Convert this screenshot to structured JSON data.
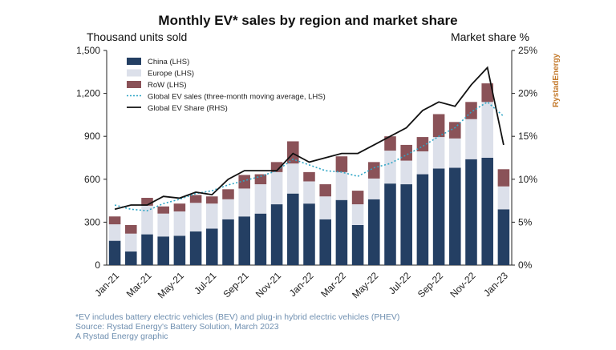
{
  "chart_data": {
    "type": "bar",
    "title": "Monthly EV* sales by region and market share",
    "left_axis_label": "Thousand units sold",
    "right_axis_label": "Market share %",
    "brand": "RystadEnergy",
    "ylim_left": [
      0,
      1500
    ],
    "yticks_left": [
      "0",
      "300",
      "600",
      "900",
      "1,200",
      "1,500"
    ],
    "ylim_right": [
      0,
      25
    ],
    "yticks_right": [
      "0%",
      "5%",
      "10%",
      "15%",
      "20%",
      "25%"
    ],
    "categories": [
      "Jan-21",
      "Feb-21",
      "Mar-21",
      "Apr-21",
      "May-21",
      "Jun-21",
      "Jul-21",
      "Aug-21",
      "Sep-21",
      "Oct-21",
      "Nov-21",
      "Dec-21",
      "Jan-22",
      "Feb-22",
      "Mar-22",
      "Apr-22",
      "May-22",
      "Jun-22",
      "Jul-22",
      "Aug-22",
      "Sep-22",
      "Oct-22",
      "Nov-22",
      "Dec-22",
      "Jan-23"
    ],
    "x_tick_labels": [
      "Jan-21",
      "",
      "Mar-21",
      "",
      "May-21",
      "",
      "Jul-21",
      "",
      "Sep-21",
      "",
      "Nov-21",
      "",
      "Jan-22",
      "",
      "Mar-22",
      "",
      "May-22",
      "",
      "Jul-22",
      "",
      "Sep-22",
      "",
      "Nov-22",
      "",
      "Jan-23"
    ],
    "series": [
      {
        "name": "China (LHS)",
        "kind": "bar",
        "color": "#243f63",
        "values": [
          170,
          95,
          215,
          200,
          205,
          235,
          255,
          320,
          340,
          360,
          425,
          500,
          430,
          320,
          455,
          280,
          460,
          570,
          565,
          635,
          675,
          680,
          740,
          750,
          390
        ]
      },
      {
        "name": "Europe (LHS)",
        "kind": "bar",
        "color": "#dce0ea",
        "values": [
          115,
          125,
          200,
          160,
          170,
          200,
          175,
          140,
          195,
          205,
          225,
          210,
          155,
          160,
          195,
          145,
          145,
          230,
          165,
          160,
          220,
          205,
          280,
          390,
          160
        ]
      },
      {
        "name": "RoW (LHS)",
        "kind": "bar",
        "color": "#8a5258",
        "values": [
          55,
          60,
          55,
          50,
          55,
          55,
          50,
          70,
          95,
          70,
          70,
          155,
          65,
          85,
          110,
          95,
          115,
          100,
          110,
          100,
          160,
          115,
          120,
          130,
          120
        ]
      },
      {
        "name": "Global EV sales (three-month moving average, LHS)",
        "kind": "line",
        "axis": "left",
        "color": "#2fa6c6",
        "dash": true,
        "values": [
          420,
          390,
          380,
          430,
          460,
          500,
          520,
          560,
          590,
          620,
          660,
          740,
          700,
          660,
          650,
          620,
          680,
          710,
          770,
          830,
          900,
          960,
          1070,
          1140,
          1040
        ]
      },
      {
        "name": "Global EV Share (RHS)",
        "kind": "line",
        "axis": "right",
        "color": "#111111",
        "values": [
          6.5,
          7,
          7,
          8,
          7.8,
          8.5,
          8.2,
          10,
          11,
          11,
          11,
          13,
          12,
          12.5,
          13,
          13,
          14,
          15,
          16,
          18,
          19,
          18.5,
          21,
          23,
          14
        ]
      }
    ]
  },
  "footnotes": {
    "line1": "*EV includes battery electric vehicles (BEV) and plug-in hybrid electric vehicles (PHEV)",
    "line2": "Source: Rystad Energy's Battery Solution, March 2023",
    "line3": "A Rystad Energy graphic"
  }
}
